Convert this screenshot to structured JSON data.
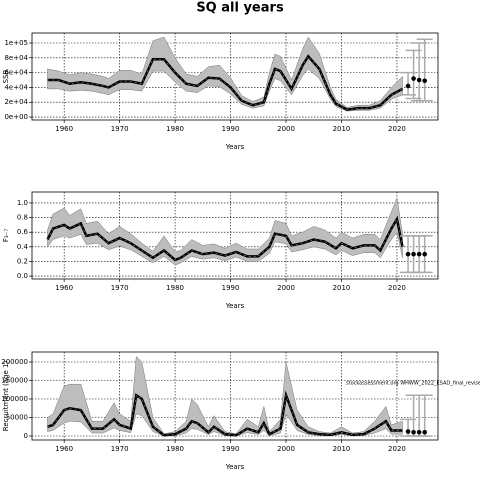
{
  "chart_data": [
    {
      "type": "line",
      "title": "SQ all years",
      "ylabel": "SSB",
      "xlabel": "Years",
      "color": "#000000",
      "band_color": "#bdbdbd",
      "forecast_color": "#aaaaaa",
      "grid": true,
      "x": [
        1957,
        1959,
        1961,
        1963,
        1965,
        1967,
        1968,
        1970,
        1972,
        1974,
        1976,
        1978,
        1980,
        1982,
        1984,
        1986,
        1988,
        1990,
        1992,
        1994,
        1996,
        1997,
        1998,
        1999,
        2001,
        2003,
        2004,
        2006,
        2008,
        2009,
        2011,
        2013,
        2015,
        2017,
        2019,
        2021
      ],
      "values": [
        50000,
        50000,
        45000,
        47000,
        45000,
        42000,
        40000,
        48000,
        48000,
        45000,
        78000,
        78000,
        60000,
        45000,
        42000,
        53000,
        52000,
        40000,
        22000,
        16000,
        20000,
        45000,
        65000,
        62000,
        38000,
        70000,
        82000,
        65000,
        30000,
        18000,
        10000,
        12000,
        12000,
        16000,
        30000,
        38000
      ],
      "low": [
        38000,
        38000,
        35000,
        36000,
        35000,
        32000,
        30000,
        37000,
        37000,
        35000,
        62000,
        62000,
        47000,
        35000,
        33000,
        42000,
        41000,
        31000,
        17000,
        12000,
        15000,
        35000,
        52000,
        49000,
        30000,
        56000,
        65000,
        52000,
        24000,
        14000,
        8000,
        9000,
        9000,
        12000,
        24000,
        30000
      ],
      "high": [
        65000,
        62000,
        57000,
        60000,
        58000,
        55000,
        52000,
        63000,
        63000,
        58000,
        103000,
        108000,
        80000,
        58000,
        55000,
        68000,
        70000,
        53000,
        29000,
        21000,
        27000,
        60000,
        85000,
        82000,
        50000,
        92000,
        108000,
        86000,
        40000,
        24000,
        13000,
        16000,
        16000,
        22000,
        40000,
        55000
      ],
      "forecast": {
        "x": [
          2022,
          2023,
          2024,
          2025
        ],
        "values": [
          42000,
          52000,
          50000,
          49000
        ],
        "low": [
          30000,
          25000,
          22000,
          22000
        ],
        "high": [
          60000,
          90000,
          100000,
          105000
        ]
      },
      "xlim": [
        1954.2,
        2027.4
      ],
      "xticks": [
        1960,
        1970,
        1980,
        1990,
        2000,
        2010,
        2020
      ],
      "ylim": [
        -4000,
        113500
      ],
      "yticks": [
        {
          "value": 0,
          "label": "0e+00"
        },
        {
          "value": 20000,
          "label": "2e+04"
        },
        {
          "value": 40000,
          "label": "4e+04"
        },
        {
          "value": 60000,
          "label": "6e+04"
        },
        {
          "value": 80000,
          "label": "8e+04"
        },
        {
          "value": 100000,
          "label": "1e+05"
        }
      ]
    },
    {
      "type": "line",
      "ylabel": "F₃₋₇",
      "xlabel": "Years",
      "color": "#000000",
      "band_color": "#bdbdbd",
      "forecast_color": "#aaaaaa",
      "grid": true,
      "x": [
        1957,
        1958,
        1960,
        1961,
        1963,
        1964,
        1966,
        1968,
        1970,
        1972,
        1974,
        1976,
        1978,
        1980,
        1981,
        1983,
        1985,
        1987,
        1989,
        1991,
        1993,
        1995,
        1997,
        1998,
        2000,
        2001,
        2003,
        2005,
        2007,
        2009,
        2010,
        2012,
        2014,
        2016,
        2017,
        2019,
        2020,
        2021
      ],
      "values": [
        0.5,
        0.65,
        0.7,
        0.65,
        0.72,
        0.55,
        0.58,
        0.45,
        0.52,
        0.45,
        0.35,
        0.25,
        0.35,
        0.22,
        0.25,
        0.35,
        0.3,
        0.32,
        0.28,
        0.33,
        0.27,
        0.27,
        0.4,
        0.58,
        0.55,
        0.42,
        0.45,
        0.5,
        0.47,
        0.38,
        0.45,
        0.38,
        0.42,
        0.42,
        0.35,
        0.65,
        0.78,
        0.4
      ],
      "low": [
        0.4,
        0.5,
        0.55,
        0.52,
        0.57,
        0.43,
        0.45,
        0.36,
        0.41,
        0.36,
        0.27,
        0.18,
        0.27,
        0.15,
        0.18,
        0.27,
        0.23,
        0.25,
        0.21,
        0.26,
        0.2,
        0.2,
        0.31,
        0.47,
        0.44,
        0.33,
        0.36,
        0.4,
        0.37,
        0.29,
        0.35,
        0.28,
        0.32,
        0.32,
        0.25,
        0.5,
        0.6,
        0.25
      ],
      "high": [
        0.63,
        0.85,
        0.93,
        0.83,
        0.92,
        0.72,
        0.75,
        0.58,
        0.68,
        0.58,
        0.45,
        0.34,
        0.55,
        0.33,
        0.35,
        0.5,
        0.42,
        0.44,
        0.38,
        0.45,
        0.37,
        0.37,
        0.52,
        0.76,
        0.72,
        0.55,
        0.6,
        0.68,
        0.63,
        0.52,
        0.6,
        0.52,
        0.57,
        0.57,
        0.5,
        0.88,
        1.07,
        0.58
      ],
      "forecast": {
        "x": [
          2022,
          2023,
          2024,
          2025
        ],
        "values": [
          0.3,
          0.3,
          0.3,
          0.3
        ],
        "low": [
          0.05,
          0.05,
          0.05,
          0.05
        ],
        "high": [
          0.55,
          0.55,
          0.55,
          0.55
        ]
      },
      "xlim": [
        1954.2,
        2027.4
      ],
      "xticks": [
        1960,
        1970,
        1980,
        1990,
        2000,
        2010,
        2020
      ],
      "ylim": [
        -0.04,
        1.15
      ],
      "yticks": [
        {
          "value": 0,
          "label": "0.0"
        },
        0.2,
        0.4,
        0.6,
        0.8,
        {
          "value": 1,
          "label": "1.0"
        }
      ]
    },
    {
      "type": "line",
      "ylabel": "Recruitment (age 1)",
      "xlabel": "Years",
      "annotation": "stockassessment.org WHWW_2022_ESAD_final_revise",
      "color": "#000000",
      "band_color": "#bdbdbd",
      "forecast_color": "#aaaaaa",
      "grid": true,
      "x": [
        1957,
        1958,
        1960,
        1961,
        1963,
        1965,
        1967,
        1969,
        1970,
        1972,
        1973,
        1974,
        1976,
        1978,
        1980,
        1982,
        1983,
        1984,
        1986,
        1987,
        1989,
        1991,
        1993,
        1995,
        1996,
        1997,
        1999,
        2000,
        2002,
        2004,
        2006,
        2008,
        2010,
        2012,
        2014,
        2016,
        2018,
        2019,
        2021
      ],
      "values": [
        25000,
        30000,
        70000,
        75000,
        70000,
        20000,
        20000,
        45000,
        30000,
        20000,
        110000,
        100000,
        25000,
        2000,
        5000,
        20000,
        40000,
        35000,
        10000,
        25000,
        5000,
        2000,
        20000,
        10000,
        35000,
        5000,
        20000,
        110000,
        30000,
        10000,
        5000,
        3000,
        10000,
        3000,
        5000,
        20000,
        40000,
        15000,
        15000
      ],
      "low": [
        12000,
        15000,
        35000,
        40000,
        38000,
        8000,
        8000,
        22000,
        15000,
        9000,
        60000,
        55000,
        12000,
        0,
        1000,
        8000,
        20000,
        18000,
        4000,
        12000,
        1000,
        0,
        9000,
        4000,
        15000,
        1000,
        8000,
        60000,
        15000,
        4000,
        1000,
        500,
        4000,
        500,
        1500,
        8000,
        20000,
        5000,
        5000
      ],
      "high": [
        50000,
        60000,
        135000,
        140000,
        140000,
        40000,
        40000,
        90000,
        60000,
        40000,
        215000,
        200000,
        50000,
        6000,
        12000,
        40000,
        100000,
        85000,
        25000,
        55000,
        12000,
        6000,
        45000,
        25000,
        80000,
        12000,
        45000,
        200000,
        70000,
        25000,
        12000,
        8000,
        25000,
        8000,
        12000,
        40000,
        80000,
        30000,
        40000
      ],
      "forecast": {
        "x": [
          2022,
          2023,
          2024,
          2025
        ],
        "values": [
          12000,
          10000,
          10000,
          10000
        ],
        "low": [
          0,
          0,
          0,
          0
        ],
        "high": [
          45000,
          110000,
          110000,
          110000
        ]
      },
      "xlim": [
        1954.2,
        2027.4
      ],
      "xticks": [
        1960,
        1970,
        1980,
        1990,
        2000,
        2010,
        2020
      ],
      "ylim": [
        -10800,
        227000
      ],
      "yticks": [
        0,
        50000,
        100000,
        150000,
        200000
      ]
    }
  ]
}
